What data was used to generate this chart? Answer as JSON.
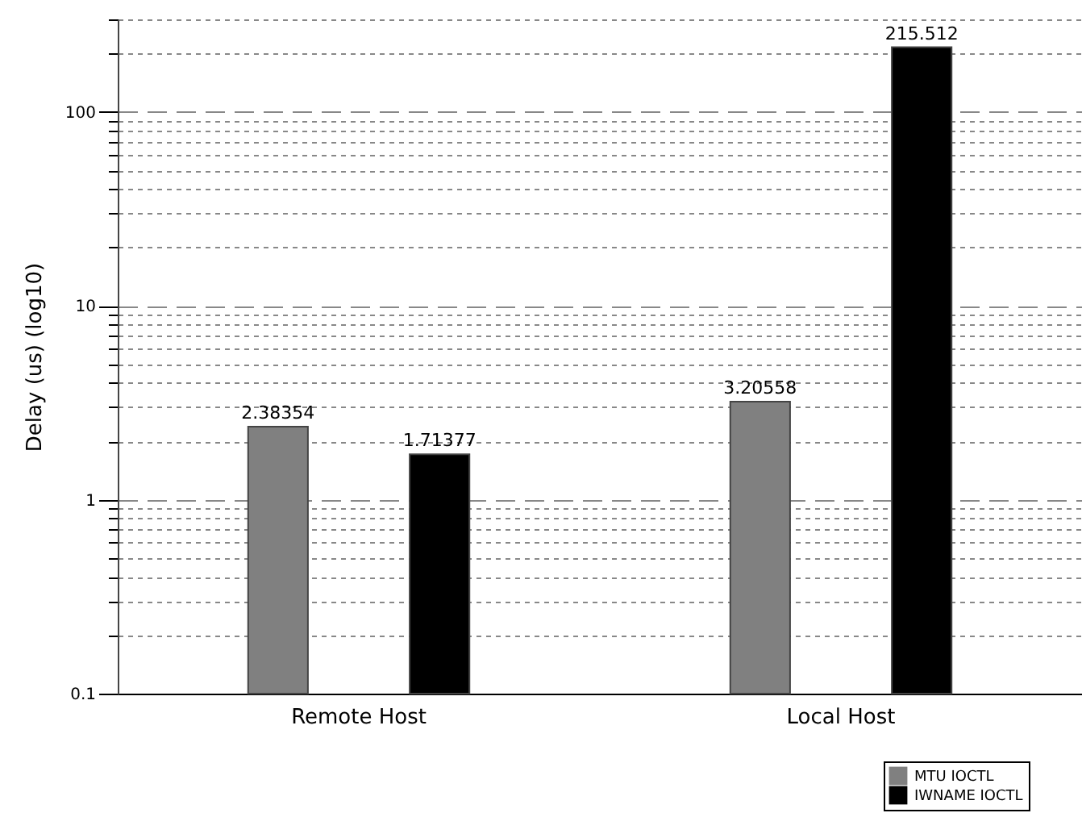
{
  "chart_data": {
    "type": "bar",
    "ylabel": "Delay (us) (log10)",
    "categories": [
      "Remote Host",
      "Local Host"
    ],
    "series": [
      {
        "name": "MTU IOCTL",
        "color": "#808080",
        "values": [
          2.38354,
          3.20558
        ]
      },
      {
        "name": "IWNAME IOCTL",
        "color": "#000000",
        "values": [
          1.71377,
          215.512
        ]
      }
    ],
    "log": true,
    "ylim": [
      0.1,
      300
    ],
    "yticks": [
      0.1,
      {
        "value": 0.2,
        "label": null
      },
      {
        "value": 0.3,
        "label": null
      },
      {
        "value": 0.4,
        "label": null
      },
      {
        "value": 0.5,
        "label": null
      },
      {
        "value": 0.6,
        "label": null
      },
      {
        "value": 0.7,
        "label": null
      },
      {
        "value": 0.8,
        "label": null
      },
      {
        "value": 0.9,
        "label": null
      },
      1,
      {
        "value": 2,
        "label": null
      },
      {
        "value": 3,
        "label": null
      },
      {
        "value": 4,
        "label": null
      },
      {
        "value": 5,
        "label": null
      },
      {
        "value": 6,
        "label": null
      },
      {
        "value": 7,
        "label": null
      },
      {
        "value": 8,
        "label": null
      },
      {
        "value": 9,
        "label": null
      },
      10,
      {
        "value": 20,
        "label": null
      },
      {
        "value": 30,
        "label": null
      },
      {
        "value": 40,
        "label": null
      },
      {
        "value": 50,
        "label": null
      },
      {
        "value": 60,
        "label": null
      },
      {
        "value": 70,
        "label": null
      },
      {
        "value": 80,
        "label": null
      },
      {
        "value": 90,
        "label": null
      },
      100,
      {
        "value": 200,
        "label": null
      },
      {
        "value": 300,
        "label": null
      }
    ],
    "grid": "y",
    "data_labels": true,
    "legend": "bottom right"
  }
}
